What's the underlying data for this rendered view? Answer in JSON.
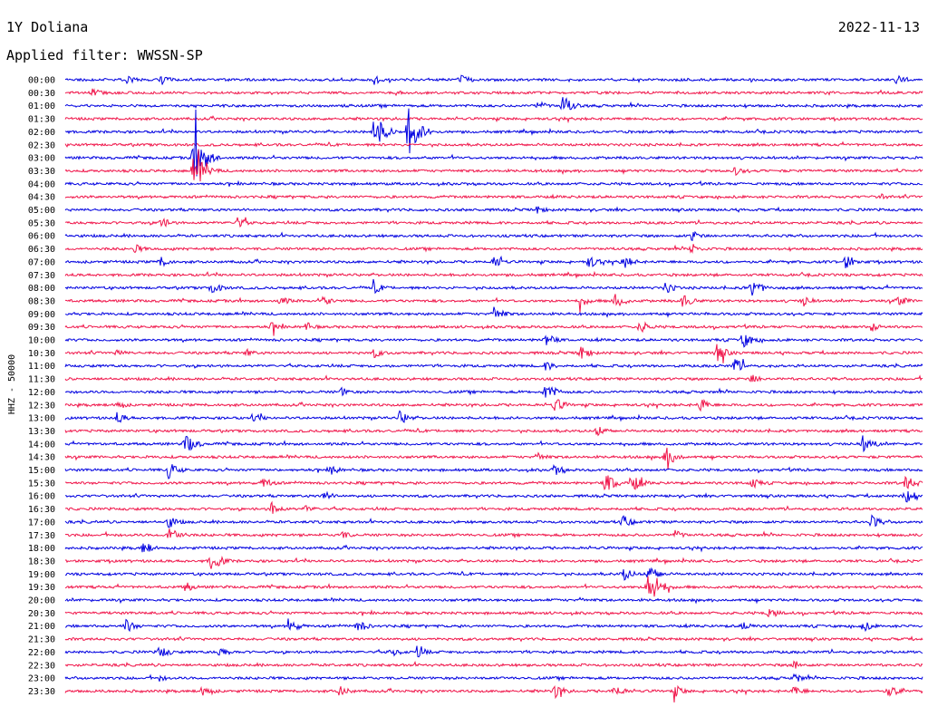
{
  "header": {
    "station": "1Y Doliana",
    "date": "2022-11-13",
    "filter_label": "Applied filter: WWSSN-SP"
  },
  "chart_data": {
    "type": "line",
    "subtype": "helicorder",
    "ylabel": "HHZ - 50000",
    "row_labels": [
      "00:00",
      "00:30",
      "01:00",
      "01:30",
      "02:00",
      "02:30",
      "03:00",
      "03:30",
      "04:00",
      "04:30",
      "05:00",
      "05:30",
      "06:00",
      "06:30",
      "07:00",
      "07:30",
      "08:00",
      "08:30",
      "09:00",
      "09:30",
      "10:00",
      "10:30",
      "11:00",
      "11:30",
      "12:00",
      "12:30",
      "13:00",
      "13:30",
      "14:00",
      "14:30",
      "15:00",
      "15:30",
      "16:00",
      "16:30",
      "17:00",
      "17:30",
      "18:00",
      "18:30",
      "19:00",
      "19:30",
      "20:00",
      "20:30",
      "21:00",
      "21:30",
      "22:00",
      "22:30",
      "23:00",
      "23:30"
    ],
    "colors": [
      "#0000e0",
      "#f0154a"
    ],
    "events": [
      {
        "row": 0,
        "x": 0.07,
        "amp": 6
      },
      {
        "row": 0,
        "x": 0.11,
        "amp": 7
      },
      {
        "row": 0,
        "x": 0.36,
        "amp": 7
      },
      {
        "row": 0,
        "x": 0.46,
        "amp": 7
      },
      {
        "row": 0,
        "x": 0.97,
        "amp": 7
      },
      {
        "row": 1,
        "x": 0.03,
        "amp": 6
      },
      {
        "row": 2,
        "x": 0.55,
        "amp": 6
      },
      {
        "row": 2,
        "x": 0.58,
        "amp": 12
      },
      {
        "row": 4,
        "x": 0.36,
        "amp": 22
      },
      {
        "row": 4,
        "x": 0.4,
        "amp": 28
      },
      {
        "row": 6,
        "x": 0.15,
        "amp": 30
      },
      {
        "row": 7,
        "x": 0.15,
        "amp": 22
      },
      {
        "row": 7,
        "x": 0.78,
        "amp": 6
      },
      {
        "row": 9,
        "x": 0.95,
        "amp": 4
      },
      {
        "row": 10,
        "x": 0.55,
        "amp": 5
      },
      {
        "row": 11,
        "x": 0.11,
        "amp": 8
      },
      {
        "row": 11,
        "x": 0.2,
        "amp": 7
      },
      {
        "row": 12,
        "x": 0.73,
        "amp": 7
      },
      {
        "row": 13,
        "x": 0.08,
        "amp": 6
      },
      {
        "row": 13,
        "x": 0.73,
        "amp": 7
      },
      {
        "row": 14,
        "x": 0.11,
        "amp": 7
      },
      {
        "row": 14,
        "x": 0.5,
        "amp": 8
      },
      {
        "row": 14,
        "x": 0.61,
        "amp": 8
      },
      {
        "row": 14,
        "x": 0.65,
        "amp": 9
      },
      {
        "row": 14,
        "x": 0.91,
        "amp": 9
      },
      {
        "row": 16,
        "x": 0.17,
        "amp": 8
      },
      {
        "row": 16,
        "x": 0.36,
        "amp": 7
      },
      {
        "row": 16,
        "x": 0.7,
        "amp": 7
      },
      {
        "row": 16,
        "x": 0.8,
        "amp": 11
      },
      {
        "row": 17,
        "x": 0.25,
        "amp": 6
      },
      {
        "row": 17,
        "x": 0.3,
        "amp": 6
      },
      {
        "row": 17,
        "x": 0.6,
        "amp": 7
      },
      {
        "row": 17,
        "x": 0.64,
        "amp": 9
      },
      {
        "row": 17,
        "x": 0.72,
        "amp": 8
      },
      {
        "row": 17,
        "x": 0.86,
        "amp": 7
      },
      {
        "row": 17,
        "x": 0.97,
        "amp": 7
      },
      {
        "row": 18,
        "x": 0.5,
        "amp": 9
      },
      {
        "row": 19,
        "x": 0.24,
        "amp": 6
      },
      {
        "row": 19,
        "x": 0.28,
        "amp": 6
      },
      {
        "row": 19,
        "x": 0.67,
        "amp": 8
      },
      {
        "row": 19,
        "x": 0.94,
        "amp": 6
      },
      {
        "row": 20,
        "x": 0.56,
        "amp": 8
      },
      {
        "row": 20,
        "x": 0.79,
        "amp": 10
      },
      {
        "row": 21,
        "x": 0.06,
        "amp": 5
      },
      {
        "row": 21,
        "x": 0.21,
        "amp": 5
      },
      {
        "row": 21,
        "x": 0.36,
        "amp": 6
      },
      {
        "row": 21,
        "x": 0.6,
        "amp": 9
      },
      {
        "row": 21,
        "x": 0.76,
        "amp": 10
      },
      {
        "row": 22,
        "x": 0.56,
        "amp": 6
      },
      {
        "row": 22,
        "x": 0.78,
        "amp": 9
      },
      {
        "row": 23,
        "x": 0.8,
        "amp": 6
      },
      {
        "row": 24,
        "x": 0.32,
        "amp": 6
      },
      {
        "row": 24,
        "x": 0.56,
        "amp": 11
      },
      {
        "row": 25,
        "x": 0.06,
        "amp": 6
      },
      {
        "row": 25,
        "x": 0.57,
        "amp": 9
      },
      {
        "row": 25,
        "x": 0.74,
        "amp": 8
      },
      {
        "row": 26,
        "x": 0.06,
        "amp": 7
      },
      {
        "row": 26,
        "x": 0.22,
        "amp": 6
      },
      {
        "row": 26,
        "x": 0.39,
        "amp": 8
      },
      {
        "row": 27,
        "x": 0.62,
        "amp": 7
      },
      {
        "row": 28,
        "x": 0.14,
        "amp": 12
      },
      {
        "row": 28,
        "x": 0.93,
        "amp": 10
      },
      {
        "row": 29,
        "x": 0.55,
        "amp": 6
      },
      {
        "row": 29,
        "x": 0.7,
        "amp": 12
      },
      {
        "row": 30,
        "x": 0.12,
        "amp": 10
      },
      {
        "row": 30,
        "x": 0.31,
        "amp": 6
      },
      {
        "row": 30,
        "x": 0.57,
        "amp": 7
      },
      {
        "row": 31,
        "x": 0.23,
        "amp": 7
      },
      {
        "row": 31,
        "x": 0.63,
        "amp": 12
      },
      {
        "row": 31,
        "x": 0.66,
        "amp": 11
      },
      {
        "row": 31,
        "x": 0.8,
        "amp": 7
      },
      {
        "row": 31,
        "x": 0.98,
        "amp": 10
      },
      {
        "row": 32,
        "x": 0.3,
        "amp": 7
      },
      {
        "row": 32,
        "x": 0.98,
        "amp": 14
      },
      {
        "row": 33,
        "x": 0.24,
        "amp": 8
      },
      {
        "row": 33,
        "x": 0.28,
        "amp": 5
      },
      {
        "row": 34,
        "x": 0.12,
        "amp": 8
      },
      {
        "row": 34,
        "x": 0.65,
        "amp": 8
      },
      {
        "row": 34,
        "x": 0.94,
        "amp": 8
      },
      {
        "row": 35,
        "x": 0.12,
        "amp": 12
      },
      {
        "row": 35,
        "x": 0.32,
        "amp": 6
      },
      {
        "row": 35,
        "x": 0.71,
        "amp": 6
      },
      {
        "row": 36,
        "x": 0.09,
        "amp": 8
      },
      {
        "row": 37,
        "x": 0.17,
        "amp": 12
      },
      {
        "row": 38,
        "x": 0.65,
        "amp": 9
      },
      {
        "row": 38,
        "x": 0.68,
        "amp": 11
      },
      {
        "row": 39,
        "x": 0.14,
        "amp": 6
      },
      {
        "row": 39,
        "x": 0.68,
        "amp": 24
      },
      {
        "row": 40,
        "x": 0.6,
        "amp": 3
      },
      {
        "row": 41,
        "x": 0.82,
        "amp": 7
      },
      {
        "row": 42,
        "x": 0.07,
        "amp": 8
      },
      {
        "row": 42,
        "x": 0.26,
        "amp": 9
      },
      {
        "row": 42,
        "x": 0.34,
        "amp": 8
      },
      {
        "row": 42,
        "x": 0.79,
        "amp": 6
      },
      {
        "row": 42,
        "x": 0.93,
        "amp": 7
      },
      {
        "row": 44,
        "x": 0.11,
        "amp": 8
      },
      {
        "row": 44,
        "x": 0.18,
        "amp": 7
      },
      {
        "row": 44,
        "x": 0.38,
        "amp": 6
      },
      {
        "row": 44,
        "x": 0.41,
        "amp": 7
      },
      {
        "row": 45,
        "x": 0.85,
        "amp": 6
      },
      {
        "row": 46,
        "x": 0.11,
        "amp": 4
      },
      {
        "row": 46,
        "x": 0.85,
        "amp": 6
      },
      {
        "row": 47,
        "x": 0.16,
        "amp": 8
      },
      {
        "row": 47,
        "x": 0.32,
        "amp": 7
      },
      {
        "row": 47,
        "x": 0.57,
        "amp": 9
      },
      {
        "row": 47,
        "x": 0.64,
        "amp": 8
      },
      {
        "row": 47,
        "x": 0.71,
        "amp": 8
      },
      {
        "row": 47,
        "x": 0.85,
        "amp": 7
      },
      {
        "row": 47,
        "x": 0.96,
        "amp": 8
      }
    ]
  }
}
